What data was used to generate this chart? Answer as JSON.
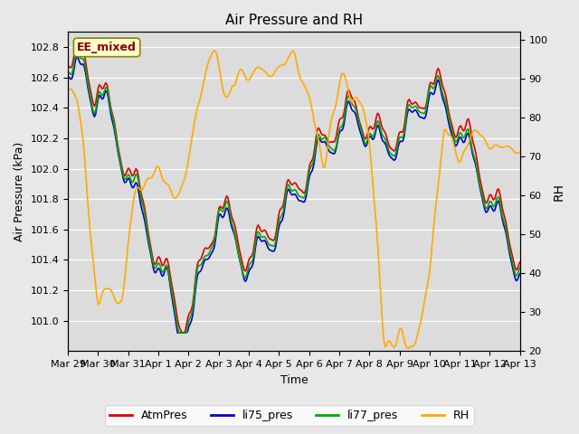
{
  "title": "Air Pressure and RH",
  "xlabel": "Time",
  "ylabel_left": "Air Pressure (kPa)",
  "ylabel_right": "RH",
  "annotation": "EE_mixed",
  "ylim_left": [
    100.8,
    102.9
  ],
  "ylim_right": [
    20,
    102
  ],
  "yticks_left": [
    101.0,
    101.2,
    101.4,
    101.6,
    101.8,
    102.0,
    102.2,
    102.4,
    102.6,
    102.8
  ],
  "yticks_right": [
    20,
    30,
    40,
    50,
    60,
    70,
    80,
    90,
    100
  ],
  "xtick_labels": [
    "Mar 29",
    "Mar 30",
    "Mar 31",
    "Apr 1",
    "Apr 2",
    "Apr 3",
    "Apr 4",
    "Apr 5",
    "Apr 6",
    "Apr 7",
    "Apr 8",
    "Apr 9",
    "Apr 10",
    "Apr 11",
    "Apr 12",
    "Apr 13"
  ],
  "color_atm": "#dd0000",
  "color_li75": "#0000cc",
  "color_li77": "#00aa00",
  "color_rh": "#ffaa00",
  "bg_color": "#e8e8e8",
  "plot_bg_color": "#dcdcdc",
  "legend_labels": [
    "AtmPres",
    "li75_pres",
    "li77_pres",
    "RH"
  ],
  "linewidth_pres": 1.2,
  "linewidth_rh": 1.2,
  "annotation_facecolor": "#ffffcc",
  "annotation_edgecolor": "#888800",
  "annotation_textcolor": "#880000",
  "figsize": [
    6.4,
    4.8
  ],
  "dpi": 100
}
